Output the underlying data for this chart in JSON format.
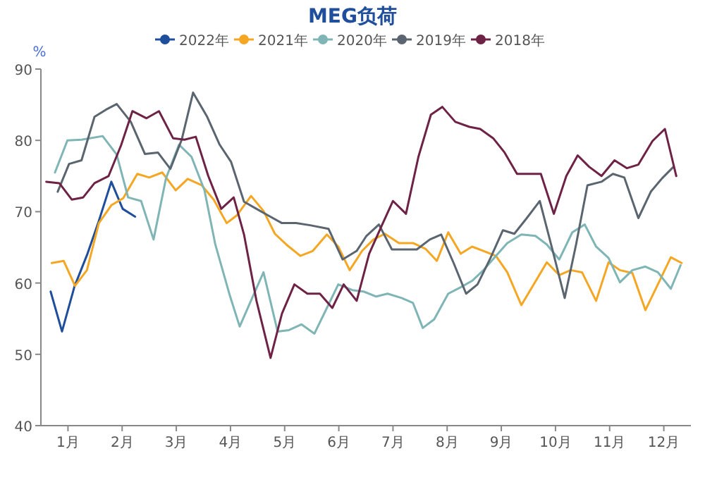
{
  "chart_data": {
    "type": "line",
    "title": "MEG负荷",
    "ylabel": "%",
    "legend": "top",
    "grid": false,
    "xlim": [
      0.5,
      12.5
    ],
    "xticks": [
      {
        "value": 1,
        "label": "1月"
      },
      {
        "value": 2,
        "label": "2月"
      },
      {
        "value": 3,
        "label": "3月"
      },
      {
        "value": 4,
        "label": "4月"
      },
      {
        "value": 5,
        "label": "5月"
      },
      {
        "value": 6,
        "label": "6月"
      },
      {
        "value": 7,
        "label": "7月"
      },
      {
        "value": 8,
        "label": "8月"
      },
      {
        "value": 9,
        "label": "9月"
      },
      {
        "value": 10,
        "label": "10月"
      },
      {
        "value": 11,
        "label": "11月"
      },
      {
        "value": 12,
        "label": "12月"
      }
    ],
    "ylim": [
      40,
      90
    ],
    "yticks": [
      40,
      50,
      60,
      70,
      80,
      90
    ],
    "series": [
      {
        "name": "2022年",
        "color": "#1f4e9c",
        "x": [
          0.68,
          0.89,
          1.12,
          1.36,
          1.57,
          1.8,
          2.01,
          2.24
        ],
        "values": [
          58.8,
          53.2,
          59.5,
          64.1,
          68.7,
          74.2,
          70.4,
          69.3
        ]
      },
      {
        "name": "2021年",
        "color": "#f5a623",
        "x": [
          0.7,
          0.92,
          1.13,
          1.35,
          1.57,
          1.8,
          2.02,
          2.28,
          2.5,
          2.74,
          2.99,
          3.21,
          3.47,
          3.69,
          3.93,
          4.12,
          4.38,
          4.61,
          4.82,
          5.03,
          5.29,
          5.52,
          5.78,
          5.99,
          6.2,
          6.43,
          6.64,
          6.85,
          7.11,
          7.37,
          7.6,
          7.81,
          8.02,
          8.25,
          8.46,
          8.67,
          8.9,
          9.11,
          9.37,
          9.63,
          9.84,
          10.07,
          10.28,
          10.49,
          10.75,
          10.98,
          11.19,
          11.42,
          11.66,
          11.89,
          12.13,
          12.33
        ],
        "values": [
          62.8,
          63.1,
          59.6,
          61.8,
          68.4,
          70.9,
          71.9,
          75.3,
          74.8,
          75.5,
          73,
          74.6,
          73.7,
          71.7,
          68.4,
          69.5,
          72.2,
          70.1,
          66.9,
          65.4,
          63.8,
          64.5,
          66.8,
          65.1,
          61.8,
          64.5,
          66.1,
          66.9,
          65.6,
          65.6,
          64.8,
          63.1,
          67.1,
          64.1,
          65.1,
          64.5,
          63.8,
          61.5,
          56.9,
          60.2,
          62.9,
          61.1,
          61.8,
          61.5,
          57.5,
          62.9,
          61.8,
          61.4,
          56.2,
          59.8,
          63.6,
          62.8
        ]
      },
      {
        "name": "2020年",
        "color": "#7fb5b5",
        "x": [
          0.76,
          0.99,
          1.25,
          1.64,
          1.9,
          2.11,
          2.35,
          2.58,
          2.81,
          3.05,
          3.28,
          3.52,
          3.72,
          3.99,
          4.17,
          4.4,
          4.61,
          4.87,
          5.08,
          5.31,
          5.55,
          5.78,
          5.99,
          6.25,
          6.46,
          6.69,
          6.9,
          7.16,
          7.37,
          7.55,
          7.76,
          8.02,
          8.25,
          8.46,
          8.67,
          8.9,
          9.11,
          9.37,
          9.63,
          9.84,
          10.07,
          10.31,
          10.54,
          10.75,
          10.98,
          11.19,
          11.42,
          11.66,
          11.89,
          12.13,
          12.31
        ],
        "values": [
          75.5,
          80,
          80.1,
          80.6,
          78,
          72,
          71.5,
          66.1,
          74.7,
          79.4,
          77.7,
          73,
          65.4,
          58.2,
          53.9,
          57.9,
          61.5,
          53.2,
          53.4,
          54.2,
          52.9,
          56.5,
          59.8,
          59,
          58.8,
          58.1,
          58.5,
          57.9,
          57.2,
          53.7,
          54.9,
          58.5,
          59.4,
          60.3,
          61.8,
          63.8,
          65.6,
          66.8,
          66.6,
          65.4,
          63.3,
          67.1,
          68.2,
          65.1,
          63.5,
          60.1,
          61.8,
          62.3,
          61.5,
          59.2,
          62.5
        ]
      },
      {
        "name": "2019年",
        "color": "#5a6570",
        "x": [
          0.81,
          1.02,
          1.25,
          1.49,
          1.7,
          1.9,
          2.16,
          2.42,
          2.66,
          2.89,
          3.1,
          3.31,
          3.57,
          3.8,
          4.01,
          4.25,
          4.48,
          4.69,
          4.95,
          5.21,
          5.47,
          5.81,
          6.07,
          6.33,
          6.51,
          6.74,
          6.98,
          7.21,
          7.44,
          7.68,
          7.89,
          8.12,
          8.35,
          8.56,
          8.8,
          9.03,
          9.24,
          9.47,
          9.71,
          9.94,
          10.17,
          10.38,
          10.59,
          10.85,
          11.06,
          11.27,
          11.53,
          11.76,
          11.97,
          12.18
        ],
        "values": [
          72.8,
          76.7,
          77.2,
          83.3,
          84.3,
          85.1,
          82.6,
          78.1,
          78.3,
          76,
          80.1,
          86.7,
          83.3,
          79.4,
          77,
          71.4,
          70.4,
          69.5,
          68.4,
          68.4,
          68.1,
          67.6,
          63.3,
          64.5,
          66.6,
          68.2,
          64.7,
          64.7,
          64.7,
          66.1,
          66.8,
          62.8,
          58.5,
          59.8,
          63.5,
          67.4,
          66.9,
          69.1,
          71.5,
          64.8,
          57.9,
          65.4,
          73.7,
          74.2,
          75.3,
          74.8,
          69.1,
          72.8,
          74.7,
          76.3
        ]
      },
      {
        "name": "2018年",
        "color": "#6e2346",
        "x": [
          0.6,
          0.84,
          1.07,
          1.28,
          1.49,
          1.75,
          1.98,
          2.19,
          2.45,
          2.68,
          2.94,
          3.15,
          3.36,
          3.59,
          3.83,
          4.06,
          4.25,
          4.48,
          4.74,
          4.95,
          5.18,
          5.42,
          5.65,
          5.88,
          6.09,
          6.33,
          6.56,
          6.79,
          7.0,
          7.24,
          7.47,
          7.7,
          7.91,
          8.15,
          8.41,
          8.61,
          8.85,
          9.06,
          9.29,
          9.52,
          9.73,
          9.97,
          10.2,
          10.41,
          10.62,
          10.85,
          11.09,
          11.32,
          11.53,
          11.79,
          12.02,
          12.23
        ],
        "values": [
          74.2,
          74,
          71.7,
          72,
          74,
          75,
          79.3,
          84.1,
          83.1,
          84.1,
          80.3,
          80.1,
          80.5,
          75,
          70.4,
          72,
          66.8,
          57.5,
          49.5,
          55.7,
          59.8,
          58.5,
          58.5,
          56.5,
          59.8,
          57.5,
          64.1,
          68,
          71.5,
          69.7,
          77.7,
          83.6,
          84.7,
          82.6,
          81.9,
          81.6,
          80.3,
          78.3,
          75.3,
          75.3,
          75.3,
          69.7,
          75,
          77.9,
          76.3,
          75,
          77.2,
          76.1,
          76.6,
          79.9,
          81.6,
          75
        ]
      }
    ]
  }
}
